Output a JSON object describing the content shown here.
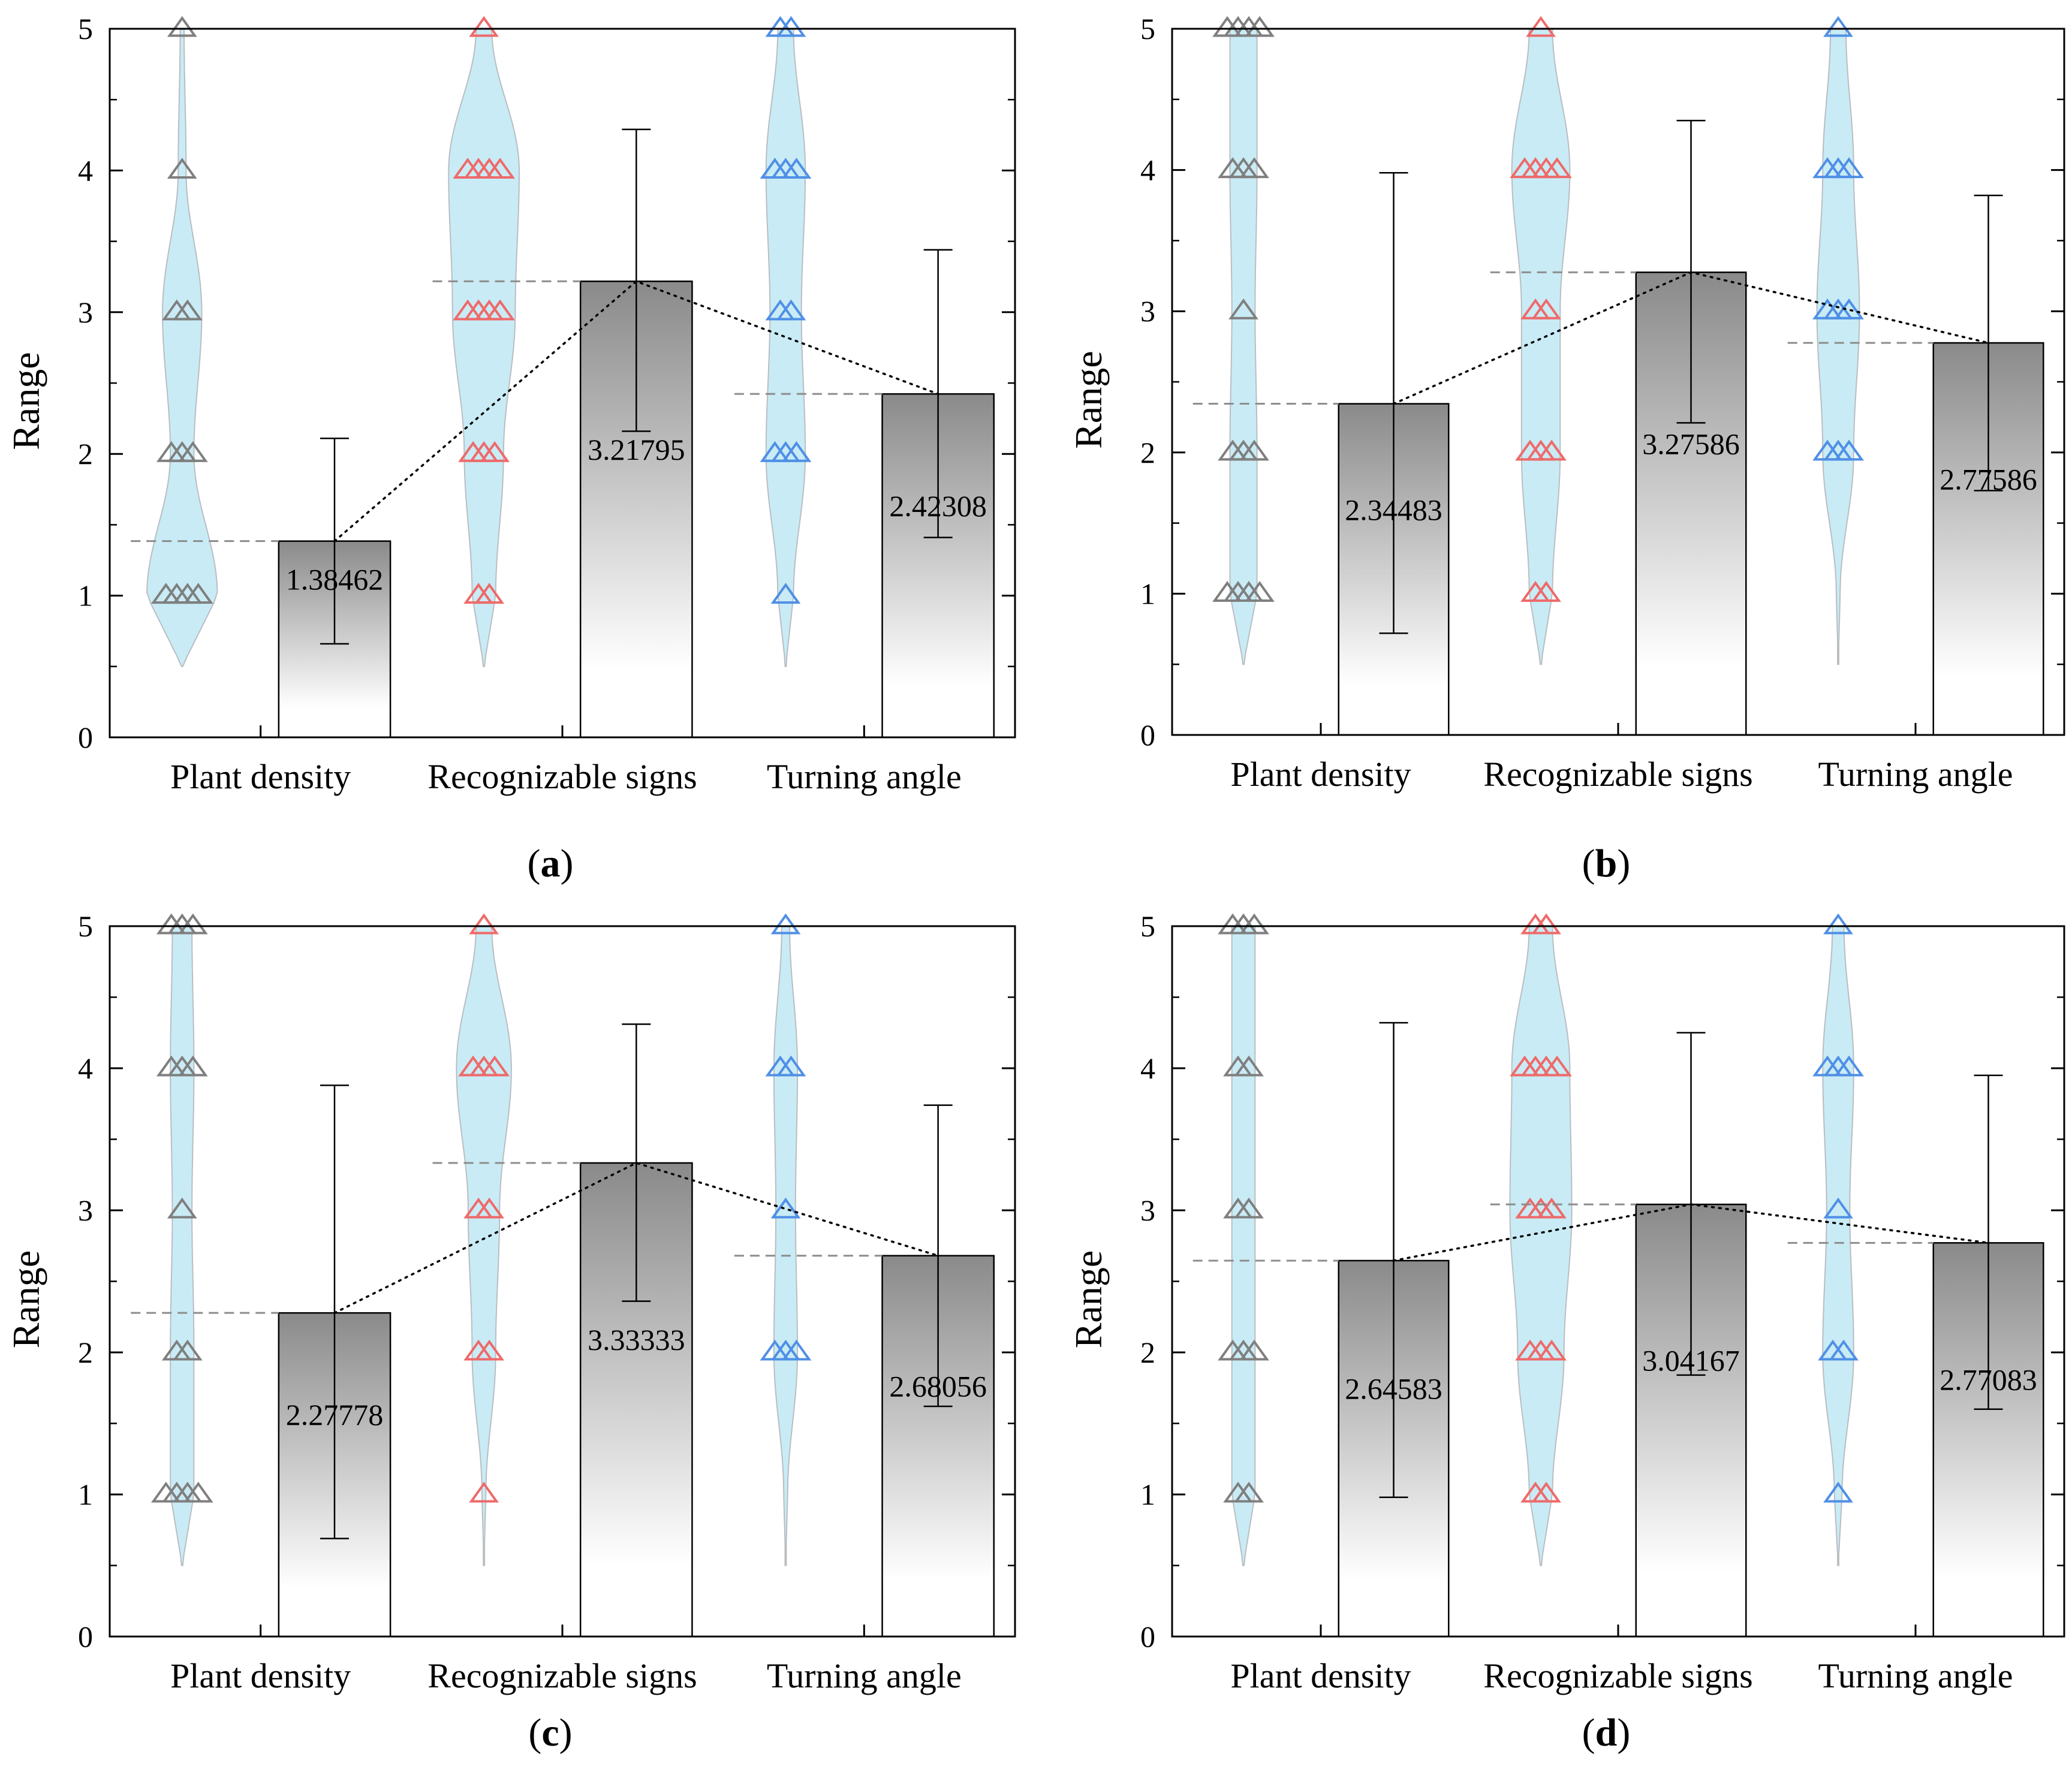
{
  "colors": {
    "violin_fill": "#c9ebf5",
    "violin_stroke": "#b9bec2",
    "bar_top": "#8a8a8a",
    "bar_bottom": "#ffffff",
    "density_marker": "#7f7f7f",
    "signs_marker": "#ee6a6a",
    "angle_marker": "#4f8fe6",
    "dashed_mean": "#8c8c8c"
  },
  "chart_data": [
    {
      "panel": "(a)",
      "panel_letter": "a",
      "type": "bar",
      "ylabel": "Range",
      "ylim": [
        0,
        5
      ],
      "yticks": [
        "0",
        "1",
        "2",
        "3",
        "4",
        "5"
      ],
      "categories": [
        "Plant density",
        "Recognizable signs",
        "Turning angle"
      ],
      "values": [
        1.38462,
        3.21795,
        2.42308
      ],
      "value_labels": [
        "1.38462",
        "3.21795",
        "2.42308"
      ],
      "error_low": [
        0.66,
        2.16,
        1.41
      ],
      "error_high": [
        2.11,
        4.29,
        3.44
      ],
      "marker_levels": [
        [
          1,
          2,
          3,
          4,
          5
        ],
        [
          1,
          2,
          3,
          4,
          5
        ],
        [
          1,
          2,
          3,
          4,
          5
        ]
      ],
      "marker_counts": [
        [
          4,
          3,
          2,
          1,
          1
        ],
        [
          2,
          3,
          4,
          4,
          1
        ],
        [
          1,
          3,
          2,
          3,
          2
        ]
      ],
      "violin_widths": [
        [
          0.9,
          0.3,
          0.5,
          0.1,
          0.05
        ],
        [
          0.3,
          0.5,
          0.8,
          0.9,
          0.2
        ],
        [
          0.2,
          0.5,
          0.4,
          0.5,
          0.2
        ]
      ]
    },
    {
      "panel": "(b)",
      "panel_letter": "b",
      "type": "bar",
      "ylabel": "Range",
      "ylim": [
        0,
        5
      ],
      "yticks": [
        "0",
        "1",
        "2",
        "3",
        "4",
        "5"
      ],
      "categories": [
        "Plant density",
        "Recognizable signs",
        "Turning angle"
      ],
      "values": [
        2.34483,
        3.27586,
        2.77586
      ],
      "value_labels": [
        "2.34483",
        "3.27586",
        "2.77586"
      ],
      "error_low": [
        0.72,
        2.21,
        1.73
      ],
      "error_high": [
        3.98,
        4.35,
        3.82
      ],
      "marker_levels": [
        [
          1,
          2,
          3,
          4,
          5
        ],
        [
          1,
          2,
          3,
          4,
          5
        ],
        [
          1,
          2,
          3,
          4,
          5
        ]
      ],
      "marker_counts": [
        [
          4,
          3,
          1,
          3,
          4
        ],
        [
          2,
          3,
          2,
          4,
          1
        ],
        [
          0,
          3,
          3,
          3,
          1
        ]
      ],
      "violin_widths": [
        [
          0.35,
          0.35,
          0.3,
          0.35,
          0.35
        ],
        [
          0.3,
          0.5,
          0.5,
          0.75,
          0.3
        ],
        [
          0.05,
          0.4,
          0.55,
          0.4,
          0.2
        ]
      ]
    },
    {
      "panel": "(c)",
      "panel_letter": "c",
      "type": "bar",
      "ylabel": "Range",
      "ylim": [
        0,
        5
      ],
      "yticks": [
        "0",
        "1",
        "2",
        "3",
        "4",
        "5"
      ],
      "categories": [
        "Plant density",
        "Recognizable signs",
        "Turning angle"
      ],
      "values": [
        2.27778,
        3.33333,
        2.68056
      ],
      "value_labels": [
        "2.27778",
        "3.33333",
        "2.68056"
      ],
      "error_low": [
        0.69,
        2.36,
        1.62
      ],
      "error_high": [
        3.88,
        4.31,
        3.74
      ],
      "marker_levels": [
        [
          1,
          2,
          3,
          4,
          5
        ],
        [
          1,
          2,
          3,
          4,
          5
        ],
        [
          1,
          2,
          3,
          4,
          5
        ]
      ],
      "marker_counts": [
        [
          4,
          2,
          1,
          3,
          3
        ],
        [
          1,
          2,
          2,
          3,
          1
        ],
        [
          0,
          3,
          1,
          2,
          1
        ]
      ],
      "violin_widths": [
        [
          0.3,
          0.3,
          0.25,
          0.3,
          0.25
        ],
        [
          0.05,
          0.3,
          0.4,
          0.7,
          0.2
        ],
        [
          0.05,
          0.3,
          0.25,
          0.3,
          0.1
        ]
      ]
    },
    {
      "panel": "(d)",
      "panel_letter": "d",
      "type": "bar",
      "ylabel": "Range",
      "ylim": [
        0,
        5
      ],
      "yticks": [
        "0",
        "1",
        "2",
        "3",
        "4",
        "5"
      ],
      "categories": [
        "Plant density",
        "Recognizable signs",
        "Turning angle"
      ],
      "values": [
        2.64583,
        3.04167,
        2.77083
      ],
      "value_labels": [
        "2.64583",
        "3.04167",
        "2.77083"
      ],
      "error_low": [
        0.98,
        1.84,
        1.6
      ],
      "error_high": [
        4.32,
        4.25,
        3.95
      ],
      "marker_levels": [
        [
          1,
          2,
          3,
          4,
          5
        ],
        [
          1,
          2,
          3,
          4,
          5
        ],
        [
          1,
          2,
          3,
          4,
          5
        ]
      ],
      "marker_counts": [
        [
          2,
          3,
          2,
          2,
          3
        ],
        [
          2,
          3,
          3,
          4,
          2
        ],
        [
          1,
          2,
          1,
          3,
          1
        ]
      ],
      "violin_widths": [
        [
          0.3,
          0.3,
          0.3,
          0.3,
          0.3
        ],
        [
          0.3,
          0.6,
          0.8,
          0.75,
          0.3
        ],
        [
          0.1,
          0.4,
          0.3,
          0.4,
          0.15
        ]
      ]
    }
  ]
}
